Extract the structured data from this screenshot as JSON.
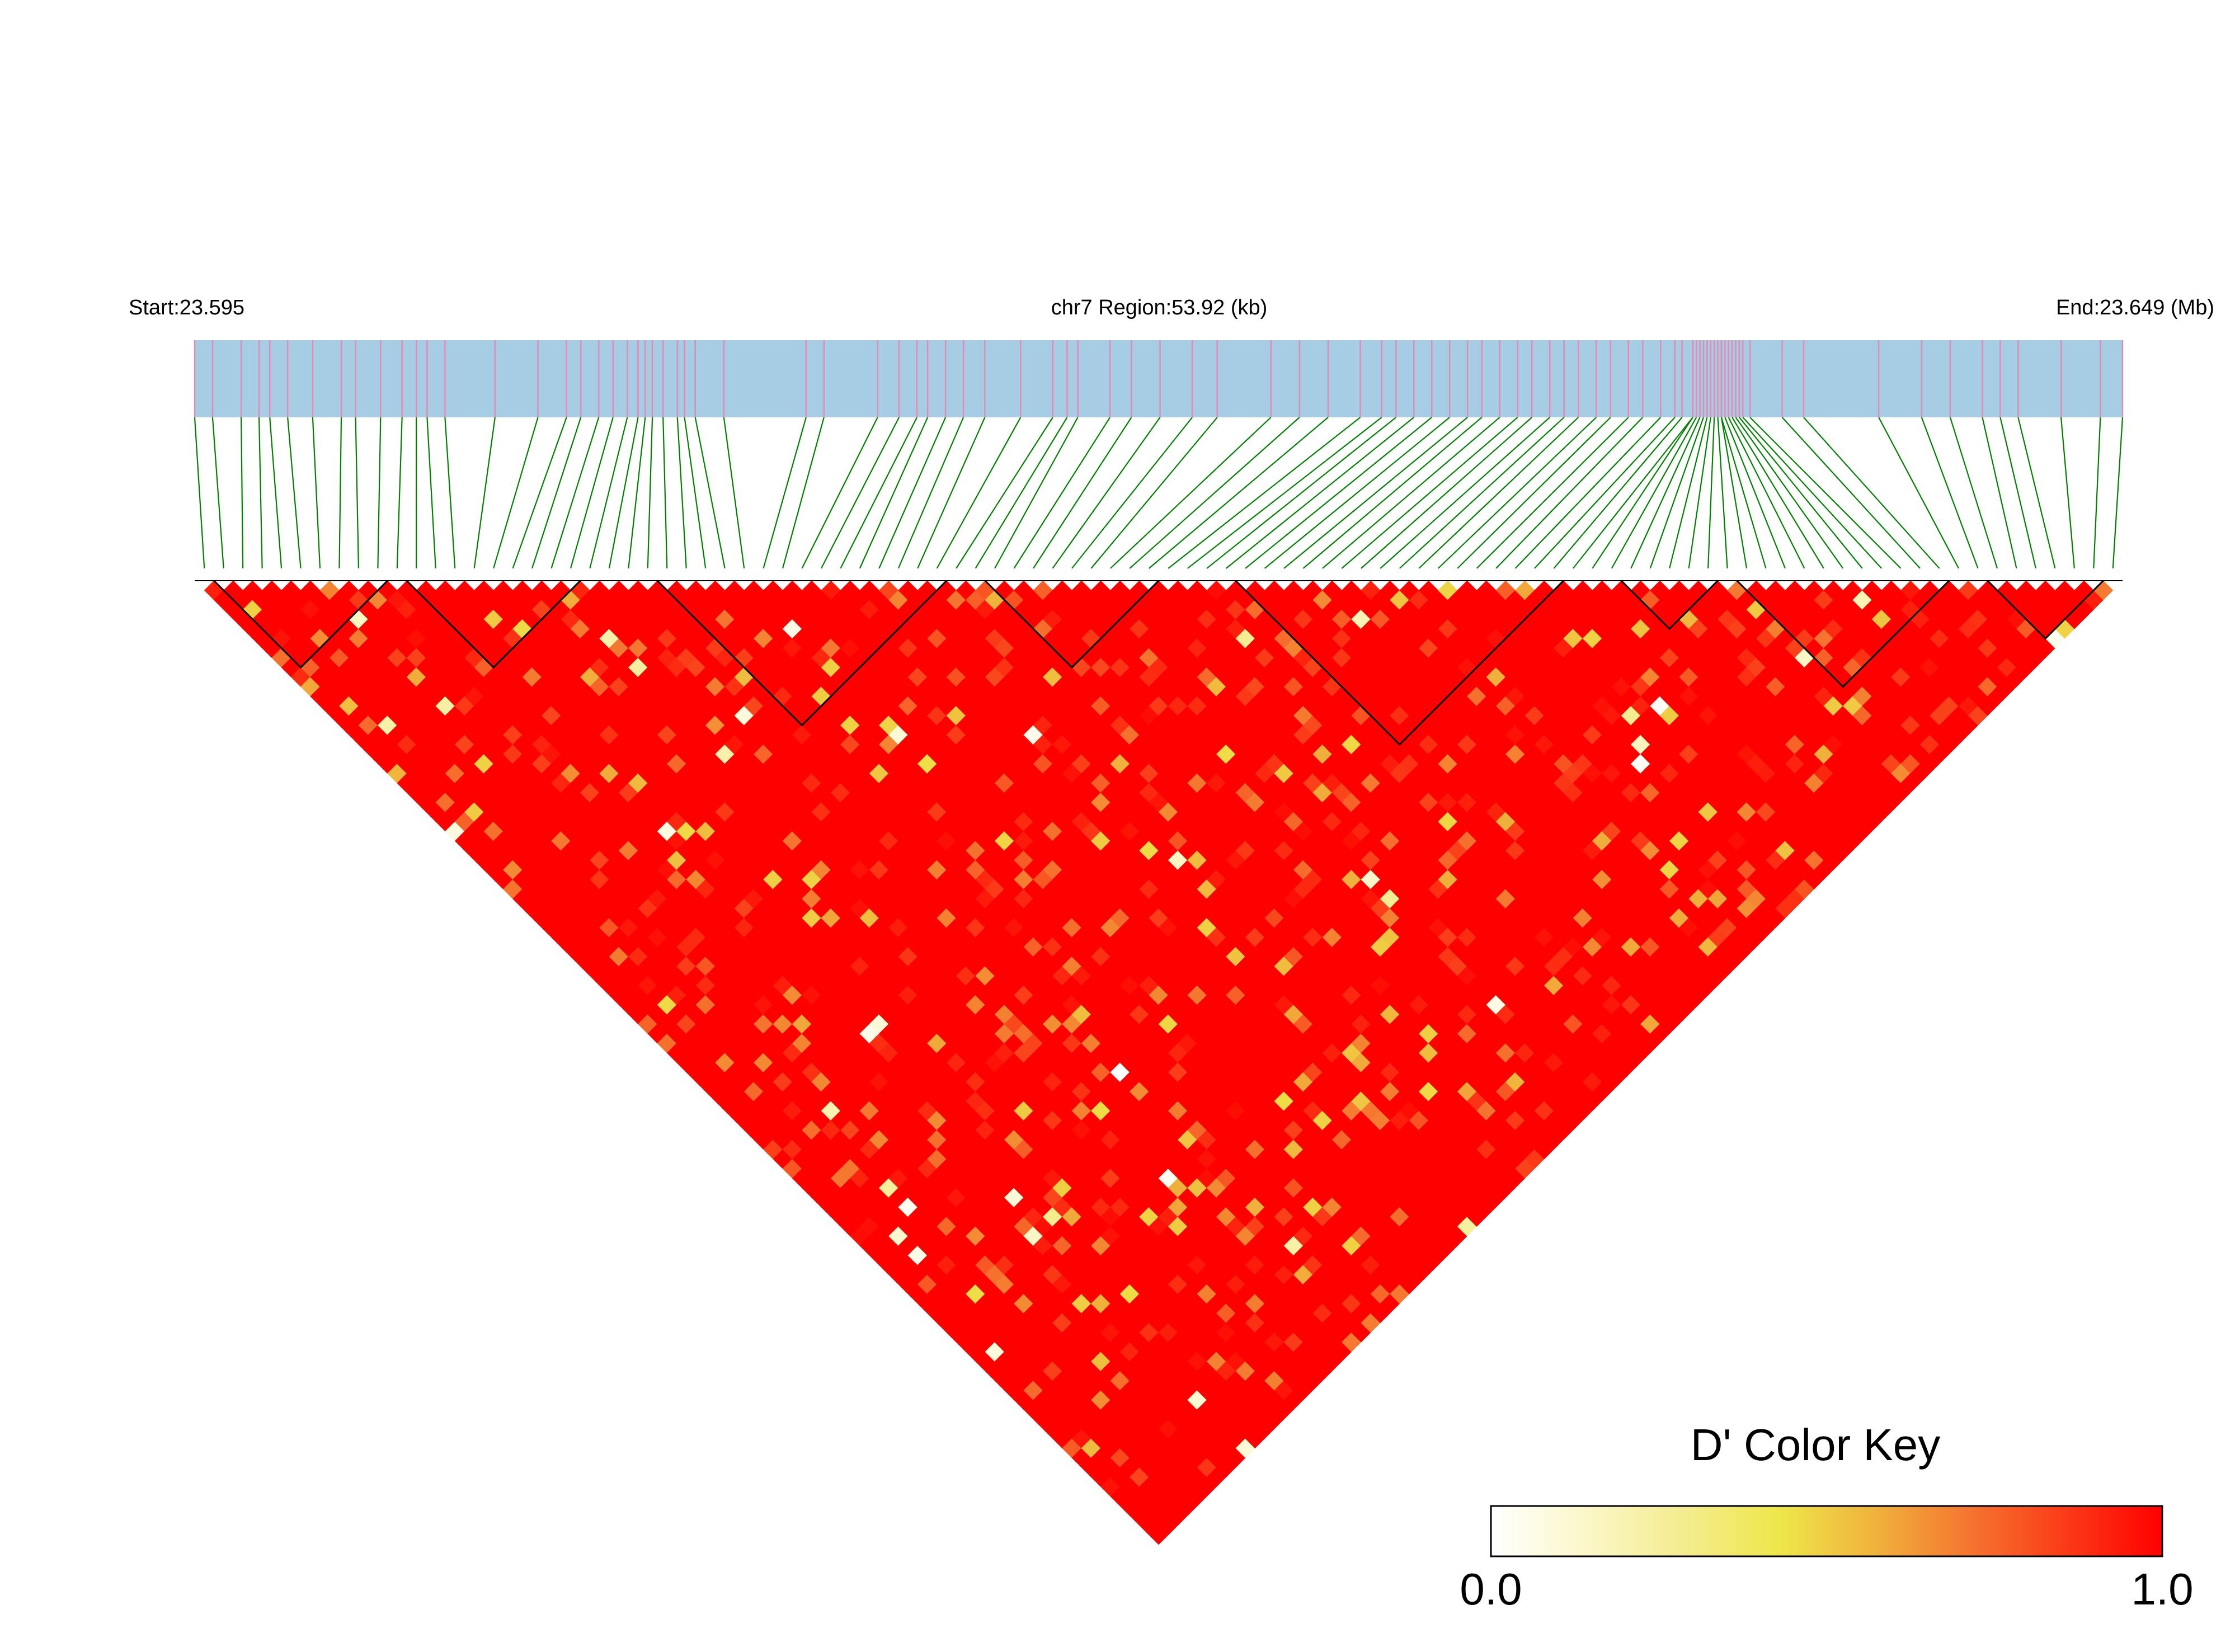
{
  "chart_data": {
    "type": "heatmap",
    "subtype": "LD triangle plot",
    "chromosome": "chr7",
    "header": {
      "start_label": "Start:23.595",
      "region_label": "chr7 Region:53.92 (kb)",
      "end_label": "End:23.649 (Mb)"
    },
    "region": {
      "start_mb": 23.595,
      "end_mb": 23.649,
      "length_kb": 53.92
    },
    "color_key": {
      "title": "D' Color Key",
      "min_label": "0.0",
      "max_label": "1.0",
      "range": [
        0.0,
        1.0
      ],
      "stops": [
        "#ffffff",
        "#fbf7c8",
        "#f4ec8f",
        "#eee74a",
        "#f0b23c",
        "#f5742f",
        "#fb3a17",
        "#ff0000"
      ]
    },
    "colors": {
      "track_fill": "#a6cde3",
      "marker_line": "#e48ab5",
      "connector_line": "#008000",
      "block_outline": "#000000"
    },
    "n_snps": 100,
    "snp_positions_kb": [
      0.0,
      0.5,
      1.3,
      1.8,
      2.1,
      2.6,
      3.3,
      4.1,
      4.5,
      5.2,
      5.8,
      6.2,
      6.5,
      7.0,
      8.4,
      9.6,
      10.4,
      10.8,
      11.3,
      11.7,
      12.1,
      12.4,
      12.6,
      12.8,
      13.1,
      13.5,
      13.7,
      14.0,
      14.8,
      17.1,
      17.6,
      19.1,
      19.7,
      20.2,
      20.5,
      21.0,
      21.5,
      22.1,
      23.1,
      24.0,
      24.4,
      24.7,
      25.6,
      26.2,
      27.0,
      27.9,
      28.6,
      30.1,
      30.9,
      31.7,
      32.6,
      33.2,
      33.6,
      34.1,
      34.6,
      35.1,
      35.6,
      36.0,
      36.5,
      37.0,
      37.4,
      37.9,
      38.3,
      38.7,
      39.2,
      39.6,
      40.1,
      40.5,
      41.0,
      41.4,
      41.6,
      41.9,
      41.9,
      42.0,
      42.1,
      42.2,
      42.3,
      42.4,
      42.5,
      42.6,
      42.7,
      42.7,
      42.8,
      42.9,
      43.0,
      43.1,
      43.2,
      43.3,
      43.5,
      44.4,
      45.0,
      47.1,
      48.3,
      49.1,
      50.0,
      50.5,
      51.0,
      52.2,
      53.3,
      53.92
    ],
    "ld_blocks": [
      {
        "block": 1,
        "first_snp": 2,
        "last_snp": 10
      },
      {
        "block": 2,
        "first_snp": 12,
        "last_snp": 20
      },
      {
        "block": 3,
        "first_snp": 25,
        "last_snp": 39
      },
      {
        "block": 4,
        "first_snp": 42,
        "last_snp": 50
      },
      {
        "block": 5,
        "first_snp": 55,
        "last_snp": 71
      },
      {
        "block": 6,
        "first_snp": 75,
        "last_snp": 79
      },
      {
        "block": 7,
        "first_snp": 81,
        "last_snp": 91
      },
      {
        "block": 8,
        "first_snp": 94,
        "last_snp": 99
      }
    ],
    "dprime_note": "Pairwise D' values for 100 SNPs: predominantly 1.0 (red), with scattered lower values (orange/yellow/white) distributed across the triangle."
  }
}
